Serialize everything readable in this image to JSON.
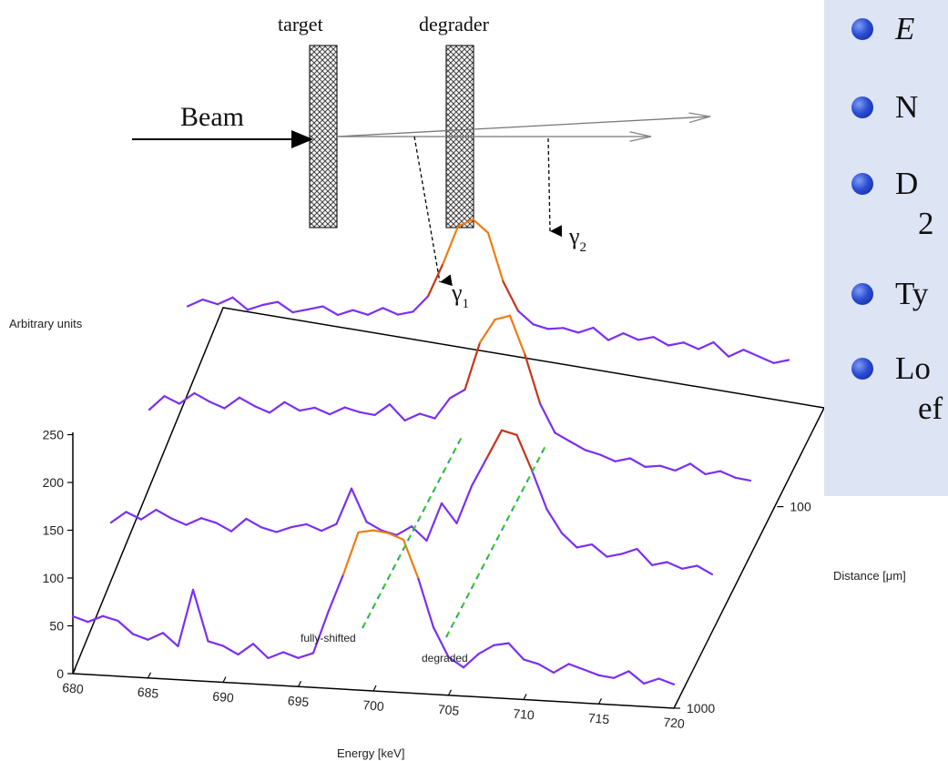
{
  "setup": {
    "beam_label": "Beam",
    "target_label": "target",
    "degrader_label": "degrader",
    "gamma1_label": "γ",
    "gamma1_sub": "1",
    "gamma2_label": "γ",
    "gamma2_sub": "2"
  },
  "bullets": [
    {
      "text": "E",
      "italic": true
    },
    {
      "text": "N"
    },
    {
      "text": "D",
      "continuation": "2"
    },
    {
      "text": "Ty"
    },
    {
      "text": "Lo",
      "continuation": "ef"
    }
  ],
  "colors": {
    "curve": "#7b2ff2",
    "peak": "#f07c14",
    "peak_dark": "#c8351c",
    "guide_a": "#3ecf1e",
    "guide_b": "#2a7df5",
    "bullet": "#2c4fd3",
    "panel": "#dde4f3"
  },
  "chart_data": {
    "type": "line",
    "ylabel": "Arbitrary units",
    "xlabel": "Energy [keV]",
    "zlabel": "Distance [μm]",
    "x_ticks": [
      "680",
      "685",
      "690",
      "695",
      "700",
      "705",
      "710",
      "715",
      "720"
    ],
    "y_ticks": [
      "0",
      "50",
      "100",
      "150",
      "200",
      "250"
    ],
    "z_ticks": [
      "100",
      "1000"
    ],
    "xlim": [
      680,
      720
    ],
    "ylim": [
      0,
      250
    ],
    "annotations": [
      "fully-shifted",
      "degraded"
    ],
    "series": [
      {
        "distance_index": 0,
        "x": [
          680,
          681,
          682,
          683,
          684,
          685,
          686,
          687,
          688,
          689,
          690,
          691,
          692,
          693,
          694,
          695,
          696,
          697,
          698,
          699,
          700,
          701,
          702,
          703,
          704,
          705,
          706,
          707,
          708,
          709,
          710,
          711,
          712,
          713,
          714,
          715,
          716,
          717,
          718,
          719,
          720
        ],
        "y": [
          60,
          55,
          62,
          58,
          45,
          40,
          48,
          35,
          95,
          42,
          38,
          30,
          42,
          28,
          35,
          30,
          36,
          80,
          120,
          165,
          168,
          166,
          160,
          120,
          70,
          40,
          30,
          45,
          55,
          58,
          42,
          38,
          30,
          40,
          35,
          30,
          28,
          36,
          24,
          30,
          25
        ]
      },
      {
        "distance_index": 1,
        "x": [
          680,
          681,
          682,
          683,
          684,
          685,
          686,
          687,
          688,
          689,
          690,
          691,
          692,
          693,
          694,
          695,
          696,
          697,
          698,
          699,
          700,
          701,
          702,
          703,
          704,
          705,
          706,
          707,
          708,
          709,
          710,
          711,
          712,
          713,
          714,
          715,
          716,
          717,
          718,
          719,
          720
        ],
        "y": [
          80,
          92,
          85,
          96,
          88,
          82,
          90,
          86,
          78,
          92,
          84,
          80,
          86,
          90,
          84,
          92,
          130,
          96,
          88,
          84,
          94,
          80,
          120,
          100,
          140,
          170,
          200,
          196,
          160,
          120,
          96,
          82,
          86,
          74,
          78,
          84,
          68,
          72,
          66,
          70,
          62
        ]
      },
      {
        "distance_index": 2,
        "x": [
          680,
          681,
          682,
          683,
          684,
          685,
          686,
          687,
          688,
          689,
          690,
          691,
          692,
          693,
          694,
          695,
          696,
          697,
          698,
          699,
          700,
          701,
          702,
          703,
          704,
          705,
          706,
          707,
          708,
          709,
          710,
          711,
          712,
          713,
          714,
          715,
          716,
          717,
          718,
          719,
          720
        ],
        "y": [
          120,
          135,
          128,
          140,
          132,
          126,
          138,
          130,
          124,
          136,
          128,
          132,
          126,
          134,
          130,
          128,
          140,
          124,
          132,
          128,
          150,
          160,
          210,
          235,
          240,
          200,
          150,
          120,
          112,
          104,
          100,
          94,
          98,
          90,
          92,
          88,
          96,
          86,
          90,
          84,
          82
        ]
      },
      {
        "distance_index": 3,
        "x": [
          680,
          681,
          682,
          683,
          684,
          685,
          686,
          687,
          688,
          689,
          690,
          691,
          692,
          693,
          694,
          695,
          696,
          697,
          698,
          699,
          700,
          701,
          702,
          703,
          704,
          705,
          706,
          707,
          708,
          709,
          710,
          711,
          712,
          713,
          714,
          715,
          716,
          717,
          718,
          719,
          720
        ],
        "y": [
          150,
          158,
          154,
          162,
          150,
          156,
          160,
          150,
          154,
          158,
          150,
          156,
          152,
          160,
          154,
          158,
          175,
          210,
          250,
          258,
          245,
          195,
          165,
          152,
          148,
          150,
          146,
          152,
          140,
          148,
          142,
          146,
          138,
          142,
          136,
          144,
          130,
          138,
          132,
          126,
          130
        ]
      }
    ]
  }
}
